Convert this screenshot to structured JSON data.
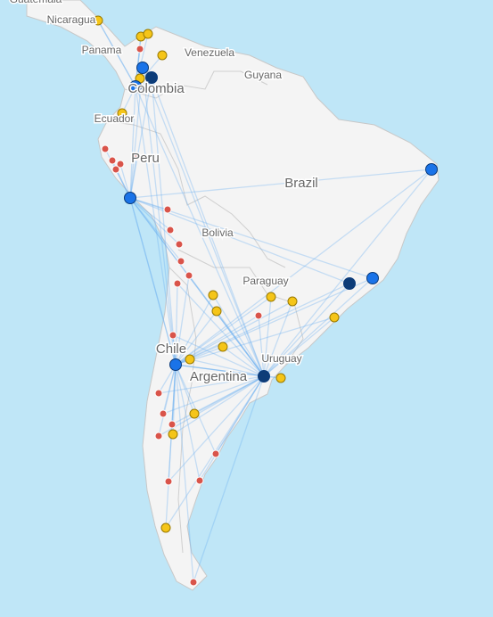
{
  "labels": [
    "Guatemala",
    "Nicaragua",
    "Panama",
    "Venezuela",
    "Guyana",
    "Colombia",
    "Ecuador",
    "Peru",
    "Brazil",
    "Bolivia",
    "Paraguay",
    "Chile",
    "Uruguay",
    "Argentina"
  ]
}
